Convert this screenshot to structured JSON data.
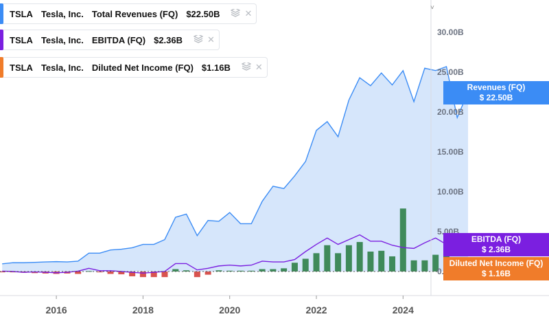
{
  "legend": [
    {
      "ticker": "TSLA",
      "company": "Tesla, Inc.",
      "metric": "Total Revenues (FQ)",
      "value": "$22.50B",
      "color": "#3b8cf5"
    },
    {
      "ticker": "TSLA",
      "company": "Tesla, Inc.",
      "metric": "EBITDA (FQ)",
      "value": "$2.36B",
      "color": "#7b1fe0"
    },
    {
      "ticker": "TSLA",
      "company": "Tesla, Inc.",
      "metric": "Diluted Net Income (FQ)",
      "value": "$1.16B",
      "color": "#f07c2a"
    }
  ],
  "icons": {
    "settings": "stack-icon",
    "close": "close-icon"
  },
  "badges": {
    "revenue": {
      "label": "Revenues (FQ)",
      "value": "$ 22.50B",
      "color": "#3b8cf5"
    },
    "ebitda": {
      "label": "EBITDA (FQ)",
      "value": "$ 2.36B",
      "color": "#7b1fe0"
    },
    "net_income": {
      "label": "Diluted Net Income (FQ)",
      "value": "$ 1.16B",
      "color": "#f07c2a"
    }
  },
  "chart_data": {
    "type": "area",
    "y_axis_side": "right",
    "yticks": [
      {
        "value": 30,
        "label": "30.00B"
      },
      {
        "value": 25,
        "label": "25.00B"
      },
      {
        "value": 20,
        "label": "20.00B"
      },
      {
        "value": 15,
        "label": "15.00B"
      },
      {
        "value": 10,
        "label": "10.00B"
      },
      {
        "value": 5,
        "label": "5.00B"
      },
      {
        "value": 0,
        "label": "0.00"
      }
    ],
    "xticks": [
      2016,
      2018,
      2020,
      2022,
      2024
    ],
    "xlim": [
      2014.7,
      2025.8
    ],
    "ylim": [
      -3,
      33
    ],
    "grid": false,
    "positive_bar_color": "#3f8a5a",
    "negative_bar_color": "#d9534f",
    "area_fill": "#d6e6fb",
    "series": [
      {
        "name": "Total Revenues (FQ)",
        "color": "#3b8cf5",
        "x": [
          2014.75,
          2015.0,
          2015.25,
          2015.5,
          2015.75,
          2016.0,
          2016.25,
          2016.5,
          2016.75,
          2017.0,
          2017.25,
          2017.5,
          2017.75,
          2018.0,
          2018.25,
          2018.5,
          2018.75,
          2019.0,
          2019.25,
          2019.5,
          2019.75,
          2020.0,
          2020.25,
          2020.5,
          2020.75,
          2021.0,
          2021.25,
          2021.5,
          2021.75,
          2022.0,
          2022.25,
          2022.5,
          2022.75,
          2023.0,
          2023.25,
          2023.5,
          2023.75,
          2024.0,
          2024.25,
          2024.5,
          2024.75,
          2025.0,
          2025.25,
          2025.5
        ],
        "values": [
          0.96,
          1.1,
          1.1,
          1.15,
          1.2,
          1.24,
          1.2,
          1.3,
          2.3,
          2.3,
          2.7,
          2.8,
          2.98,
          3.4,
          3.4,
          4.0,
          6.8,
          7.2,
          4.5,
          6.4,
          6.3,
          7.4,
          6.0,
          6.0,
          8.8,
          10.7,
          10.4,
          12.0,
          13.8,
          17.7,
          18.8,
          16.9,
          21.5,
          24.3,
          23.3,
          24.9,
          23.4,
          25.2,
          21.3,
          25.5,
          25.2,
          25.7,
          19.3,
          22.5
        ]
      },
      {
        "name": "EBITDA (FQ)",
        "color": "#7b1fe0",
        "x": [
          2014.75,
          2015.0,
          2015.25,
          2015.5,
          2015.75,
          2016.0,
          2016.25,
          2016.5,
          2016.75,
          2017.0,
          2017.25,
          2017.5,
          2017.75,
          2018.0,
          2018.25,
          2018.5,
          2018.75,
          2019.0,
          2019.25,
          2019.5,
          2019.75,
          2020.0,
          2020.25,
          2020.5,
          2020.75,
          2021.0,
          2021.25,
          2021.5,
          2021.75,
          2022.0,
          2022.25,
          2022.5,
          2022.75,
          2023.0,
          2023.25,
          2023.5,
          2023.75,
          2024.0,
          2024.25,
          2024.5,
          2024.75,
          2025.0,
          2025.25,
          2025.5
        ],
        "values": [
          0.05,
          0.0,
          -0.1,
          -0.05,
          -0.1,
          -0.15,
          -0.1,
          0.05,
          0.4,
          0.1,
          0.1,
          0.0,
          -0.1,
          -0.2,
          -0.1,
          0.0,
          1.0,
          1.0,
          0.2,
          0.4,
          0.7,
          0.8,
          0.7,
          0.8,
          1.3,
          1.2,
          1.2,
          1.5,
          2.5,
          3.4,
          4.2,
          3.4,
          4.0,
          4.6,
          3.8,
          3.8,
          3.3,
          3.0,
          2.9,
          3.6,
          4.2,
          3.4,
          2.0,
          2.36
        ]
      }
    ],
    "bars": {
      "name": "Diluted Net Income (FQ)",
      "x": [
        2014.75,
        2015.0,
        2015.25,
        2015.5,
        2015.75,
        2016.0,
        2016.25,
        2016.5,
        2016.75,
        2017.0,
        2017.25,
        2017.5,
        2017.75,
        2018.0,
        2018.25,
        2018.5,
        2018.75,
        2019.0,
        2019.25,
        2019.5,
        2019.75,
        2020.0,
        2020.25,
        2020.5,
        2020.75,
        2021.0,
        2021.25,
        2021.5,
        2021.75,
        2022.0,
        2022.25,
        2022.5,
        2022.75,
        2023.0,
        2023.25,
        2023.5,
        2023.75,
        2024.0,
        2024.25,
        2024.5,
        2024.75,
        2025.0,
        2025.25,
        2025.5
      ],
      "values": [
        -0.1,
        -0.1,
        -0.15,
        -0.2,
        -0.25,
        -0.3,
        -0.25,
        -0.3,
        0.05,
        -0.1,
        -0.3,
        -0.35,
        -0.6,
        -0.7,
        -0.7,
        -0.7,
        0.3,
        0.15,
        -0.7,
        -0.4,
        0.15,
        0.1,
        0.1,
        0.1,
        0.3,
        0.3,
        0.4,
        1.1,
        1.6,
        2.3,
        3.3,
        2.3,
        3.3,
        3.7,
        2.5,
        2.6,
        1.9,
        7.9,
        1.4,
        1.4,
        2.1,
        2.3,
        0.4,
        1.16
      ]
    }
  }
}
